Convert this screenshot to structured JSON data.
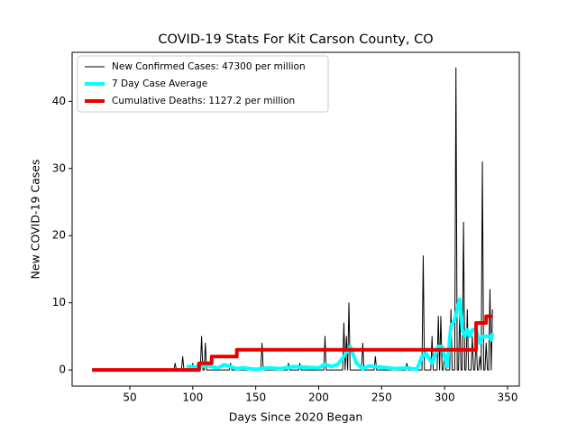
{
  "chart_data": {
    "type": "line",
    "title": "COVID-19 Stats For Kit Carson County, CO",
    "xlabel": "Days Since 2020 Began",
    "ylabel": "New COVID-19 Cases",
    "xlim": [
      4.2,
      359.3
    ],
    "ylim": [
      -2.4,
      47.3
    ],
    "xticks": [
      50,
      100,
      150,
      200,
      250,
      300,
      350
    ],
    "yticks": [
      0,
      10,
      20,
      30,
      40
    ],
    "legend": "upper left",
    "series": [
      {
        "name": "New Confirmed Cases: 47300 per million",
        "color": "#000000",
        "width": 1,
        "x": [
          85,
          86,
          87,
          91,
          92,
          93,
          99,
          100,
          101,
          103,
          104,
          105,
          106,
          107,
          108,
          109,
          110,
          111,
          129,
          130,
          131,
          154,
          155,
          156,
          175,
          176,
          177,
          184,
          185,
          186,
          204,
          205,
          206,
          219,
          220,
          221,
          222,
          223,
          224,
          225,
          234,
          235,
          236,
          244,
          245,
          246,
          269,
          270,
          271,
          282,
          283,
          284,
          289,
          290,
          291,
          294,
          295,
          296,
          297,
          298,
          299,
          300,
          301,
          304,
          305,
          306,
          308,
          309,
          310,
          311,
          312,
          313,
          314,
          315,
          316,
          317,
          318,
          319,
          321,
          322,
          323,
          324,
          325,
          326,
          327,
          328,
          329,
          330,
          331,
          332,
          333,
          334,
          335,
          336,
          337,
          338
        ],
        "values": [
          0,
          1,
          0,
          0,
          2,
          0,
          0,
          1,
          0,
          0,
          1,
          0,
          0,
          5,
          0,
          0,
          4,
          0,
          0,
          1,
          0,
          0,
          4,
          0,
          0,
          1,
          0,
          0,
          1,
          0,
          0,
          5,
          0,
          0,
          7,
          0,
          5,
          0,
          10,
          0,
          0,
          4,
          0,
          0,
          2,
          0,
          0,
          1,
          0,
          0,
          17,
          0,
          0,
          5,
          0,
          0,
          8,
          0,
          8,
          0,
          0,
          3,
          0,
          0,
          9,
          0,
          0,
          45,
          0,
          0,
          9,
          0,
          0,
          22,
          0,
          0,
          9,
          0,
          0,
          5,
          0,
          0,
          5,
          0,
          0,
          2,
          0,
          31,
          0,
          0,
          4,
          0,
          0,
          12,
          0,
          9
        ]
      },
      {
        "name": "7 Day Case Average",
        "color": "#00ffff",
        "width": 4,
        "x": [
          95,
          100,
          105,
          110,
          115,
          120,
          125,
          130,
          135,
          140,
          150,
          160,
          170,
          180,
          190,
          200,
          205,
          210,
          215,
          220,
          225,
          230,
          235,
          240,
          250,
          260,
          270,
          278,
          282,
          285,
          290,
          295,
          298,
          302,
          305,
          308,
          312,
          314,
          316,
          318,
          320,
          322,
          325,
          328,
          330,
          335,
          337,
          338
        ],
        "values": [
          0.5,
          0.5,
          0.3,
          0.7,
          0.5,
          0.3,
          0.8,
          0.5,
          0.2,
          0.3,
          0.1,
          0.3,
          0.2,
          0.5,
          0.4,
          0.3,
          0.9,
          0.5,
          0.8,
          2,
          3.5,
          1,
          0.2,
          0.6,
          0.4,
          0.2,
          0.3,
          0.1,
          2,
          2.5,
          1,
          3.5,
          3.5,
          0.5,
          6.5,
          7.5,
          10.5,
          6,
          5,
          6,
          5,
          6,
          6,
          4,
          5,
          5,
          4.5,
          5.5
        ]
      },
      {
        "name": "Cumulative Deaths: 1127.2 per million",
        "color": "#e60000",
        "width": 4,
        "x": [
          20,
          105,
          105,
          115,
          115,
          135,
          135,
          325,
          325,
          333,
          333,
          338
        ],
        "values": [
          0,
          0,
          1,
          1,
          2,
          2,
          3,
          3,
          7,
          7,
          8,
          8
        ]
      }
    ]
  }
}
